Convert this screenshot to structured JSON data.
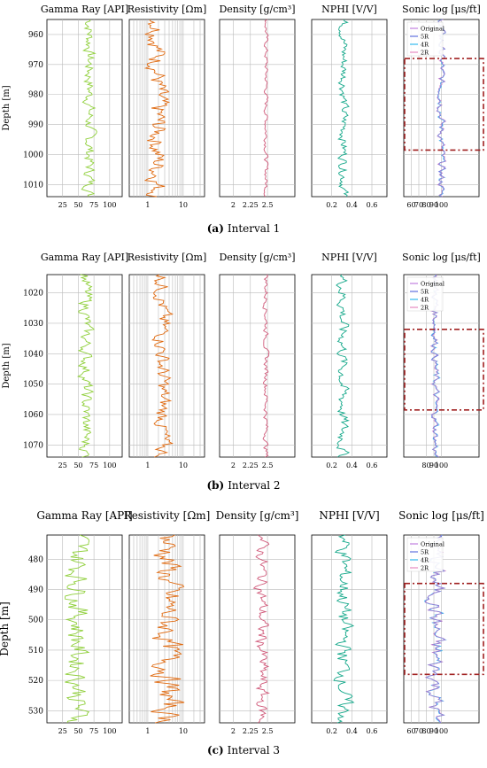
{
  "figure": {
    "panel_titles": [
      "Gamma Ray [API]",
      "Resistivity [Ωm]",
      "Density [g/cm³]",
      "NPHI [V/V]",
      "Sonic log [μs/ft]"
    ],
    "ylabel": "Depth [m]",
    "legend": [
      "Original",
      "5R",
      "4R",
      "2R"
    ]
  },
  "colors": {
    "gamma": "#8fcf3a",
    "resistivity": "#e06a10",
    "density": "#d05a7a",
    "nphi": "#15a88a",
    "sonic": "#6070e0",
    "orig": "#444444",
    "dashbox": "#a02020",
    "grid": "#bbbbbb"
  },
  "chart_data": [
    {
      "type": "line",
      "title": "Interval 1",
      "caption_letter": "(a)",
      "caption_text": "Interval 1",
      "ylim": [
        1014,
        955
      ],
      "yticks": [
        960,
        970,
        980,
        990,
        1000,
        1010
      ],
      "box_range": [
        968,
        998.5
      ],
      "panels": [
        {
          "key": "gamma",
          "xlim": [
            0,
            120
          ],
          "xticks": [
            25,
            50,
            75,
            100
          ],
          "log": false,
          "center": 68,
          "amp": 8
        },
        {
          "key": "resistivity",
          "xlim": [
            0.3,
            40
          ],
          "xticks": [
            1,
            10
          ],
          "log": true,
          "center": 1.9,
          "amp": 0.25
        },
        {
          "key": "density",
          "xlim": [
            1.8,
            2.9
          ],
          "xticks": [
            2.0,
            2.25,
            2.5
          ],
          "log": false,
          "center": 2.48,
          "amp": 0.025
        },
        {
          "key": "nphi",
          "xlim": [
            0.0,
            0.75
          ],
          "xticks": [
            0.2,
            0.4,
            0.6
          ],
          "log": false,
          "center": 0.32,
          "amp": 0.04
        },
        {
          "key": "sonic",
          "xlim": [
            50,
            150
          ],
          "xticks": [
            60,
            70,
            80,
            90,
            100
          ],
          "log": false,
          "center": 100,
          "amp": 4
        }
      ]
    },
    {
      "type": "line",
      "title": "Interval 2",
      "caption_letter": "(b)",
      "caption_text": "Interval 2",
      "ylim": [
        1074,
        1014
      ],
      "yticks": [
        1020,
        1030,
        1040,
        1050,
        1060,
        1070
      ],
      "box_range": [
        1032,
        1058.5
      ],
      "panels": [
        {
          "key": "gamma",
          "xlim": [
            0,
            120
          ],
          "xticks": [
            25,
            50,
            75,
            100
          ],
          "log": false,
          "center": 62,
          "amp": 9
        },
        {
          "key": "resistivity",
          "xlim": [
            0.3,
            40
          ],
          "xticks": [
            1,
            10
          ],
          "log": true,
          "center": 2.6,
          "amp": 0.2
        },
        {
          "key": "density",
          "xlim": [
            1.8,
            2.9
          ],
          "xticks": [
            2.0,
            2.25,
            2.5
          ],
          "log": false,
          "center": 2.48,
          "amp": 0.03
        },
        {
          "key": "nphi",
          "xlim": [
            0.0,
            0.75
          ],
          "xticks": [
            0.2,
            0.4,
            0.6
          ],
          "log": false,
          "center": 0.31,
          "amp": 0.05
        },
        {
          "key": "sonic",
          "xlim": [
            50,
            150
          ],
          "xticks": [
            80,
            90,
            100
          ],
          "log": false,
          "center": 92,
          "amp": 4
        }
      ]
    },
    {
      "type": "line",
      "title": "Interval 3",
      "caption_letter": "(c)",
      "caption_text": "Interval 3",
      "ylim": [
        534,
        472
      ],
      "yticks": [
        480,
        490,
        500,
        510,
        520,
        530
      ],
      "box_range": [
        488,
        518
      ],
      "panels": [
        {
          "key": "gamma",
          "xlim": [
            0,
            120
          ],
          "xticks": [
            25,
            50,
            75,
            100
          ],
          "log": false,
          "center": 50,
          "amp": 16
        },
        {
          "key": "resistivity",
          "xlim": [
            0.3,
            40
          ],
          "xticks": [
            1,
            10
          ],
          "log": true,
          "center": 3.6,
          "amp": 0.35
        },
        {
          "key": "density",
          "xlim": [
            1.8,
            2.9
          ],
          "xticks": [
            2.0,
            2.25,
            2.5
          ],
          "log": false,
          "center": 2.42,
          "amp": 0.08
        },
        {
          "key": "nphi",
          "xlim": [
            0.0,
            0.75
          ],
          "xticks": [
            0.2,
            0.4,
            0.6
          ],
          "log": false,
          "center": 0.32,
          "amp": 0.07
        },
        {
          "key": "sonic",
          "xlim": [
            50,
            150
          ],
          "xticks": [
            60,
            70,
            80,
            90,
            100
          ],
          "log": false,
          "center": 92,
          "amp": 10
        }
      ]
    }
  ]
}
